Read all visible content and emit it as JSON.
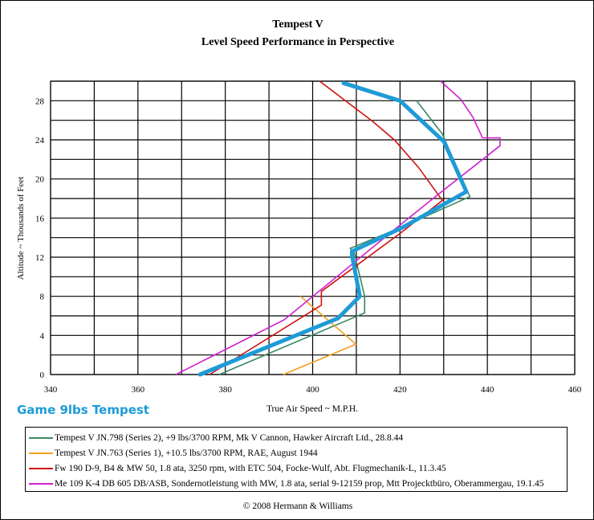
{
  "chart_data": {
    "type": "line",
    "title": "Tempest V",
    "subtitle": "Level Speed Performance in Perspective",
    "xlabel": "True Air Speed ~ M.P.H.",
    "ylabel": "Altitude ~ Thousands of Feet",
    "xlim": [
      340,
      460
    ],
    "ylim": [
      0,
      30
    ],
    "xticks": [
      340,
      360,
      380,
      400,
      420,
      440,
      460
    ],
    "yticks": [
      0,
      4,
      8,
      12,
      16,
      20,
      24,
      28
    ],
    "grid": true,
    "legend_position": "bottom",
    "annotation": "Game 9lbs Tempest",
    "copyright": "© 2008 Hermann & Williams",
    "series": [
      {
        "name": "Tempest V JN.798 (Series 2), +9 lbs/3700 RPM, Mk V Cannon, Hawker Aircraft Ltd., 28.8.44",
        "color": "#3a8a63",
        "points": [
          [
            378.6,
            0
          ],
          [
            411.9,
            6.3
          ],
          [
            411.9,
            8
          ],
          [
            409.5,
            12.5
          ],
          [
            408.6,
            12.9
          ],
          [
            420,
            15
          ],
          [
            436,
            18.2
          ],
          [
            434,
            20.1
          ],
          [
            429.7,
            24.6
          ],
          [
            423.8,
            28
          ]
        ]
      },
      {
        "name": "Tempest V JN.763 (Series 1), +10.5 lbs/3700 RPM, RAE, August 1944",
        "color": "#f0a020",
        "points": [
          [
            393.3,
            0
          ],
          [
            409.9,
            3.1
          ],
          [
            397.2,
            8
          ]
        ]
      },
      {
        "name": "Fw 190 D-9, B4 & MW 50, 1.8 ata, 3250 rpm, with ETC 504, Focke-Wulf, Abt. Flugmechanik-L, 11.3.45",
        "color": "#d01010",
        "points": [
          [
            376.4,
            0
          ],
          [
            402,
            7.1
          ],
          [
            402,
            8.5
          ],
          [
            420.2,
            14.5
          ],
          [
            429.7,
            17.8
          ],
          [
            424.2,
            21.2
          ],
          [
            418.7,
            24
          ],
          [
            413.7,
            25.9
          ],
          [
            401.6,
            30
          ]
        ]
      },
      {
        "name": "Me 109 K-4 DB 605 DB/ASB, Sondernotleistung with MW, 1.8 ata, serial 9-12159 prop, Mtt Projecktbüro, Oberammergau, 19.1.45",
        "color": "#d020d0",
        "points": [
          [
            368.7,
            0
          ],
          [
            393.5,
            5.6
          ],
          [
            418.1,
            14.6
          ],
          [
            428.4,
            18.3
          ],
          [
            442.9,
            23.4
          ],
          [
            442.9,
            24.2
          ],
          [
            438.9,
            24.2
          ],
          [
            436.7,
            26.3
          ],
          [
            434,
            28.1
          ],
          [
            429.3,
            30
          ]
        ]
      }
    ],
    "overlay_series": {
      "color": "#1e9bd7",
      "points": [
        [
          374.2,
          0
        ],
        [
          405.8,
          5.75
        ],
        [
          410.8,
          8
        ],
        [
          409,
          12.2
        ],
        [
          409,
          12.6
        ],
        [
          420.4,
          15
        ],
        [
          435.2,
          18.7
        ],
        [
          430.1,
          23.8
        ],
        [
          420,
          28
        ],
        [
          407.1,
          29.8
        ]
      ]
    }
  }
}
